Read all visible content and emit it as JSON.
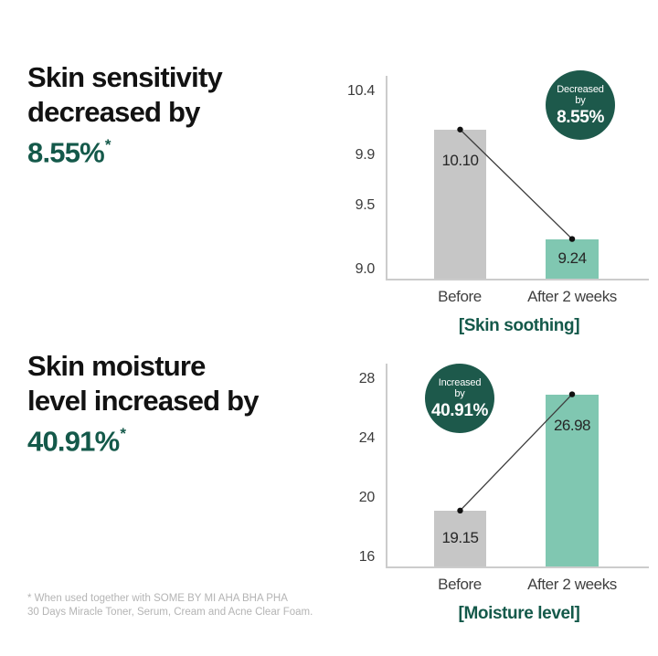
{
  "colors": {
    "accent_green_text": "#14594a",
    "badge_background": "#1d594b",
    "teal_bar": "#80c7b1",
    "gray_bar": "#c6c6c6",
    "axis_line": "#cccccc",
    "footnote_gray": "#b4b4b4"
  },
  "sections": [
    {
      "headline_line1": "Skin sensitivity",
      "headline_line2": "decreased by",
      "percent": "8.55%",
      "asterisk": "*"
    },
    {
      "headline_line1": "Skin moisture",
      "headline_line2": "level increased by",
      "percent": "40.91%",
      "asterisk": "*"
    }
  ],
  "chart_data": [
    {
      "type": "bar",
      "title": "[Skin soothing]",
      "categories": [
        "Before",
        "After 2 weeks"
      ],
      "values": [
        10.1,
        9.24
      ],
      "value_labels": [
        "10.10",
        "9.24"
      ],
      "yticks": [
        10.4,
        9.9,
        9.5,
        9.0
      ],
      "ytick_labels": [
        "10.4",
        "9.9",
        "9.5",
        "9.0"
      ],
      "ylim": [
        9.0,
        10.4
      ],
      "bar_colors": [
        "#c6c6c6",
        "#80c7b1"
      ],
      "grid": false,
      "legend": "none",
      "badge": {
        "line1": "Decreased",
        "line2": "by",
        "percent": "8.55%"
      }
    },
    {
      "type": "bar",
      "title": "[Moisture level]",
      "categories": [
        "Before",
        "After 2 weeks"
      ],
      "values": [
        19.15,
        26.98
      ],
      "value_labels": [
        "19.15",
        "26.98"
      ],
      "yticks": [
        28,
        24,
        20,
        16
      ],
      "ytick_labels": [
        "28",
        "24",
        "20",
        "16"
      ],
      "ylim": [
        16,
        28
      ],
      "bar_colors": [
        "#c6c6c6",
        "#80c7b1"
      ],
      "grid": false,
      "legend": "none",
      "badge": {
        "line1": "Increased",
        "line2": "by",
        "percent": "40.91%"
      }
    }
  ],
  "footnote": {
    "line1": "* When used together with SOME BY MI AHA BHA PHA",
    "line2": "30 Days Miracle Toner, Serum, Cream and Acne Clear Foam."
  }
}
